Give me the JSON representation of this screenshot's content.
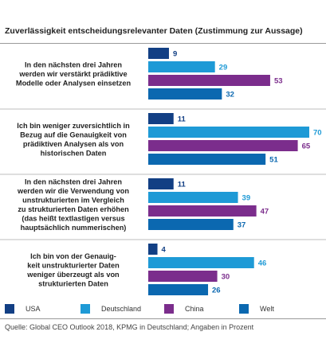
{
  "chart_data": {
    "type": "bar",
    "orientation": "horizontal",
    "title": "Zuverlässigkeit entscheidungsrelevanter Daten (Zustimmung zur Aussage)",
    "categories": [
      [
        "In den nächsten drei Jahren",
        "werden wir verstärkt prädiktive",
        "Modelle oder Analysen einsetzen"
      ],
      [
        "Ich bin weniger zuversichtlich in",
        "Bezug auf die Genauigkeit von",
        "prädiktiven Analysen als von",
        "historischen Daten"
      ],
      [
        "In den nächsten drei Jahren",
        "werden wir die Verwendung von",
        "unstrukturierten im Vergleich",
        "zu strukturierten Daten erhöhen",
        "(das heißt textlastigen versus",
        "hauptsächlich nummerischen)"
      ],
      [
        "Ich bin von der Genauig-",
        "keit unstrukturierter Daten",
        "weniger überzeugt als von",
        "strukturierten Daten"
      ]
    ],
    "series": [
      {
        "name": "USA",
        "color": "#123f84",
        "values": [
          9,
          11,
          11,
          4
        ]
      },
      {
        "name": "Deutschland",
        "color": "#1e9ad6",
        "values": [
          29,
          70,
          39,
          46
        ]
      },
      {
        "name": "China",
        "color": "#7b2d8c",
        "values": [
          53,
          65,
          47,
          30
        ]
      },
      {
        "name": "Welt",
        "color": "#0b68b0",
        "values": [
          32,
          51,
          37,
          26
        ]
      }
    ],
    "xlim": [
      0,
      70
    ],
    "grid": false,
    "legend_position": "bottom",
    "source": "Quelle: Global CEO Outlook 2018, KPMG in Deutschland; Angaben in Prozent"
  }
}
